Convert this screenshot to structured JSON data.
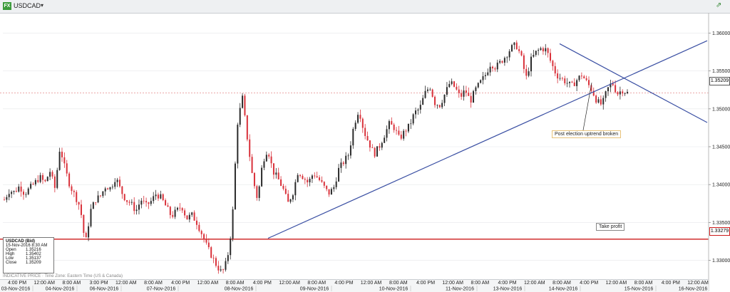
{
  "toolbar": {
    "symbol": "USDCAD",
    "symbol_icon_text": "FX",
    "caret": "▾",
    "pin_icon": "⇗"
  },
  "chart_data": {
    "type": "candlestick",
    "symbol": "USDCAD",
    "ylim": [
      1.3275,
      1.3625
    ],
    "y_ticks": [
      "1.36000",
      "1.35500",
      "1.35000",
      "1.34500",
      "1.34000",
      "1.33500",
      "1.33000"
    ],
    "last_price_label": "1.35209",
    "take_profit_label": "1.33279",
    "time_ticks_top": [
      "4:00 PM",
      "12:00 AM",
      "8:00 AM",
      "3:00 PM",
      "12:00 AM",
      "8:00 AM",
      "4:00 PM",
      "12:00 AM",
      "8:00 AM",
      "4:00 PM",
      "12:00 AM",
      "8:00 AM",
      "4:00 PM",
      "12:00 AM",
      "8:00 AM",
      "4:00 PM",
      "12:00 AM",
      "8:00 AM",
      "4:00 PM",
      "12:00 AM",
      "8:00 AM",
      "4:00 PM",
      "12:00 AM",
      "8:00 AM",
      "4:00 PM",
      "12:00 AM"
    ],
    "date_ticks": [
      "03-Nov-2016",
      "04-Nov-2016",
      "06-Nov-2016",
      "07-Nov-2016",
      "08-Nov-2016",
      "09-Nov-2016",
      "10-Nov-2016",
      "11-Nov-2016",
      "13-Nov-2016",
      "14-Nov-2016",
      "15-Nov-2016",
      "16-Nov-2016"
    ],
    "price_path": [
      1.338,
      1.3392,
      1.339,
      1.3398,
      1.3388,
      1.3395,
      1.3402,
      1.341,
      1.3402,
      1.3418,
      1.3395,
      1.345,
      1.342,
      1.3398,
      1.3385,
      1.337,
      1.332,
      1.3365,
      1.338,
      1.3385,
      1.3398,
      1.3395,
      1.341,
      1.3392,
      1.338,
      1.3375,
      1.3365,
      1.338,
      1.3372,
      1.3378,
      1.3388,
      1.3382,
      1.337,
      1.3358,
      1.3365,
      1.3372,
      1.3355,
      1.336,
      1.335,
      1.3335,
      1.3318,
      1.3305,
      1.3292,
      1.3283,
      1.33,
      1.335,
      1.348,
      1.3515,
      1.346,
      1.341,
      1.338,
      1.343,
      1.3448,
      1.3418,
      1.3408,
      1.3395,
      1.3375,
      1.339,
      1.3418,
      1.341,
      1.3402,
      1.3415,
      1.3408,
      1.3398,
      1.3388,
      1.3395,
      1.342,
      1.343,
      1.344,
      1.3478,
      1.35,
      1.347,
      1.3455,
      1.344,
      1.345,
      1.3465,
      1.348,
      1.3475,
      1.346,
      1.347,
      1.3478,
      1.3495,
      1.35,
      1.352,
      1.353,
      1.3508,
      1.3505,
      1.352,
      1.3535,
      1.3528,
      1.3515,
      1.3525,
      1.351,
      1.3525,
      1.3535,
      1.3545,
      1.356,
      1.3555,
      1.3562,
      1.357,
      1.358,
      1.3585,
      1.357,
      1.354,
      1.3565,
      1.3575,
      1.358,
      1.3578,
      1.356,
      1.3545,
      1.354,
      1.3535,
      1.353,
      1.3538,
      1.3545,
      1.3535,
      1.3525,
      1.351,
      1.3505,
      1.3525,
      1.3535,
      1.352,
      1.3525,
      1.3521
    ],
    "trendlines": [
      {
        "name": "uptrend",
        "from": [
          "08-Nov-2016 8:00 PM",
          1.3329
        ],
        "to": [
          "16-Nov-2016",
          1.359
        ]
      },
      {
        "name": "downtrend",
        "from": [
          "14-Nov-2016 8:00 AM",
          1.3586
        ],
        "to": [
          "16-Nov-2016",
          1.3482
        ]
      }
    ],
    "horizontal_levels": [
      {
        "name": "last-price",
        "value": 1.35209
      },
      {
        "name": "take-profit",
        "value": 1.33279
      }
    ],
    "annotations": [
      "Post election uptrend broken",
      "Take profit"
    ]
  },
  "info_box": {
    "title": "USDCAD (Bid)",
    "datetime": "15-Nov-2016 8:30 AM",
    "open_label": "Open",
    "open": "1.35216",
    "high_label": "High",
    "high": "1.35402",
    "low_label": "Low",
    "low": "1.35137",
    "close_label": "Close",
    "close": "1.35209"
  },
  "footnote": "INDICATIVE PRICE · Time Zone: Eastern Time (US & Canada)",
  "colors": {
    "up": "#2b2b2b",
    "down": "#d9313a",
    "trendline": "#3a4fa3",
    "take_profit_line": "#cc1a1a",
    "last_price_line": "#e58a8a"
  }
}
